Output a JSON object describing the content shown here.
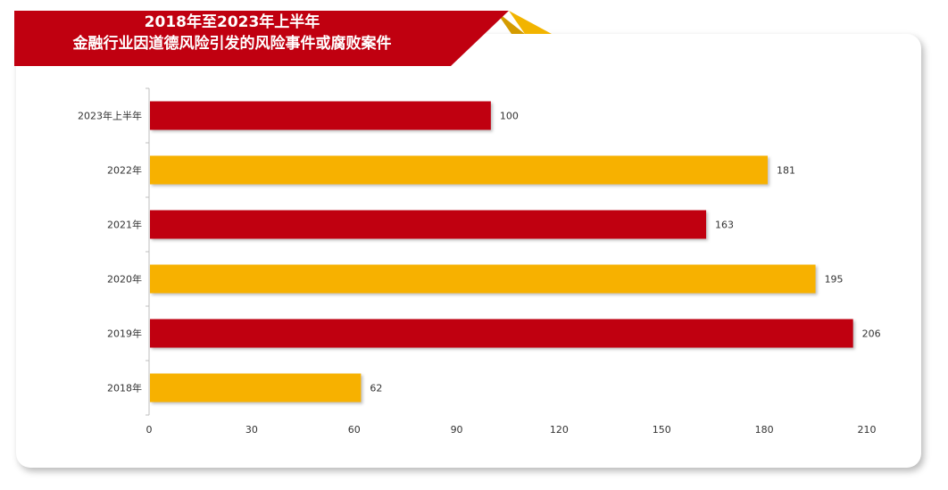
{
  "title": {
    "line1": "2018年至2023年上半年",
    "line2": "金融行业因道德风险引发的风险事件或腐败案件"
  },
  "colors": {
    "red": "#C00010",
    "gold": "#F7B100",
    "axis": "#BFBFBF",
    "text": "#333333"
  },
  "chart_data": {
    "type": "bar",
    "orientation": "horizontal",
    "title": "2018年至2023年上半年 金融行业因道德风险引发的风险事件或腐败案件",
    "categories": [
      "2023年上半年",
      "2022年",
      "2021年",
      "2020年",
      "2019年",
      "2018年"
    ],
    "values": [
      100,
      181,
      163,
      195,
      206,
      62
    ],
    "bar_colors": [
      "#C00010",
      "#F7B100",
      "#C00010",
      "#F7B100",
      "#C00010",
      "#F7B100"
    ],
    "xticks": [
      0,
      30,
      60,
      90,
      120,
      150,
      180,
      210
    ],
    "xlim": [
      0,
      210
    ],
    "data_labels": true,
    "grid": false,
    "legend": false
  }
}
